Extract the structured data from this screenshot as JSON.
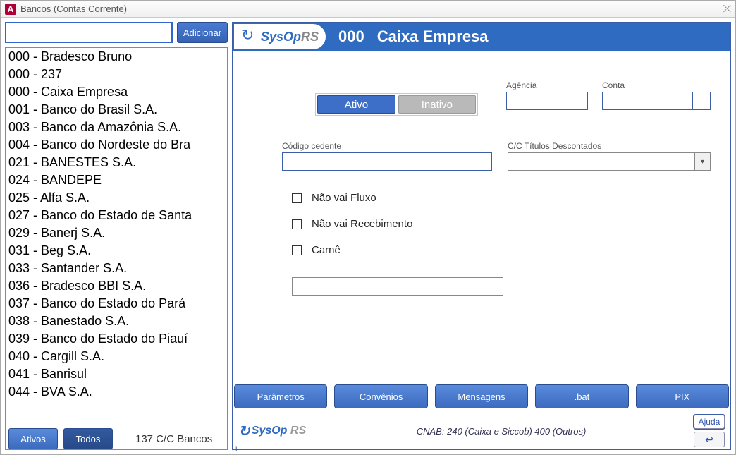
{
  "window": {
    "title": "Bancos (Contas Corrente)",
    "app_letter": "A"
  },
  "sidebar": {
    "search_value": "",
    "add_label": "Adicionar",
    "items": [
      "000 - Bradesco Bruno",
      "000 - 237",
      "000 - Caixa Empresa",
      "001 - Banco do Brasil S.A.",
      "003 - Banco da Amazônia S.A.",
      "004 - Banco do Nordeste do Bra",
      "021 - BANESTES S.A.",
      "024 - BANDEPE",
      "025 - Alfa S.A.",
      "027 - Banco do Estado de Santa",
      "029 - Banerj S.A.",
      "031 - Beg S.A.",
      "033 - Santander S.A.",
      "036 - Bradesco BBI S.A.",
      "037 - Banco do Estado do Pará",
      "038 - Banestado S.A.",
      "039 - Banco do Estado do Piauí",
      "040 - Cargill S.A.",
      "041 - Banrisul",
      "044 - BVA S.A."
    ]
  },
  "header": {
    "logo_sys": "SysOp",
    "logo_rs": "RS",
    "code": "000",
    "name": "Caixa Empresa"
  },
  "form": {
    "status_active": "Ativo",
    "status_inactive": "Inativo",
    "agencia_label": "Agência",
    "conta_label": "Conta",
    "cedente_label": "Código cedente",
    "cc_desc_label": "C/C Títulos Descontados",
    "chk_fluxo": "Não vai Fluxo",
    "chk_receb": "Não vai Recebimento",
    "chk_carne": "Carnê"
  },
  "actions": {
    "parametros": "Parâmetros",
    "convenios": "Convênios",
    "mensagens": "Mensagens",
    "bat": ".bat",
    "pix": "PIX"
  },
  "footer": {
    "ativos": "Ativos",
    "todos": "Todos",
    "count": "137 C/C Bancos",
    "logo_sys": "SysOp",
    "logo_rs": "RS",
    "cnab": "CNAB: 240 (Caixa e Siccob) 400 (Outros)",
    "ajuda": "Ajuda",
    "version": "1"
  },
  "colors": {
    "primary": "#3a6cc0",
    "border": "#3a5fa8"
  }
}
